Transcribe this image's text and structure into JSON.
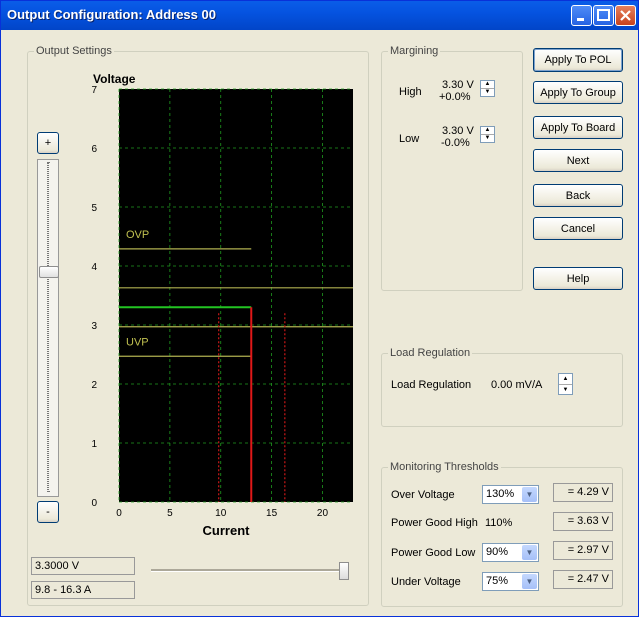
{
  "window": {
    "title": "Output Configuration: Address 00"
  },
  "output_settings": {
    "group_label": "Output Settings",
    "plus_label": "+",
    "minus_label": "-",
    "voltage_value": "3.3000 V",
    "current_range": "9.8 - 16.3 A"
  },
  "chart_data": {
    "type": "line",
    "ylabel": "Voltage",
    "xlabel": "Current",
    "xlim": [
      0,
      23
    ],
    "ylim": [
      0,
      7
    ],
    "x_ticks": [
      "0",
      "5",
      "10",
      "15",
      "20"
    ],
    "y_ticks": [
      "0",
      "1",
      "2",
      "3",
      "4",
      "5",
      "6",
      "7"
    ],
    "grid": true,
    "background": "#000000",
    "annotations": [
      {
        "text": "OVP",
        "y": 4.29
      },
      {
        "text": "UVP",
        "y": 2.47
      }
    ],
    "series": [
      {
        "role": "ovp-limit",
        "color": "#b0b050",
        "points": [
          [
            0,
            4.29
          ],
          [
            13,
            4.29
          ]
        ]
      },
      {
        "role": "uvp-limit",
        "color": "#b0b050",
        "points": [
          [
            0,
            2.47
          ],
          [
            13,
            2.47
          ]
        ]
      },
      {
        "role": "power-good-high",
        "color": "#b0b050",
        "points": [
          [
            0,
            3.63
          ],
          [
            23,
            3.63
          ]
        ]
      },
      {
        "role": "power-good-low",
        "color": "#b0b050",
        "points": [
          [
            0,
            2.97
          ],
          [
            23,
            2.97
          ]
        ]
      },
      {
        "role": "output-voltage",
        "color": "#22c422",
        "points": [
          [
            0,
            3.3
          ],
          [
            13,
            3.3
          ]
        ]
      },
      {
        "role": "current-limit",
        "color": "#e01818",
        "points": [
          [
            13,
            3.3
          ],
          [
            13,
            0
          ]
        ]
      },
      {
        "role": "current-min",
        "color": "#c81818",
        "dashed": true,
        "points": [
          [
            9.8,
            3.2
          ],
          [
            9.8,
            0
          ]
        ]
      },
      {
        "role": "current-max",
        "color": "#c81818",
        "dashed": true,
        "points": [
          [
            16.3,
            3.2
          ],
          [
            16.3,
            0
          ]
        ]
      }
    ]
  },
  "margining": {
    "group_label": "Margining",
    "high_label": "High",
    "high_voltage": "3.30 V",
    "high_percent": "+0.0%",
    "low_label": "Low",
    "low_voltage": "3.30 V",
    "low_percent": "-0.0%"
  },
  "buttons": {
    "apply_pol": "Apply To POL",
    "apply_group": "Apply To Group",
    "apply_board": "Apply To Board",
    "next": "Next",
    "back": "Back",
    "cancel": "Cancel",
    "help": "Help"
  },
  "load_regulation": {
    "group_label": "Load Regulation",
    "label": "Load Regulation",
    "value": "0.00 mV/A"
  },
  "monitoring": {
    "group_label": "Monitoring Thresholds",
    "over_voltage": {
      "label": "Over Voltage",
      "select": "130%",
      "value": "= 4.29 V"
    },
    "pg_high": {
      "label": "Power Good High",
      "text": "110%",
      "value": "= 3.63 V"
    },
    "pg_low": {
      "label": "Power Good Low",
      "select": "90%",
      "value": "= 2.97 V"
    },
    "under_voltage": {
      "label": "Under Voltage",
      "select": "75%",
      "value": "= 2.47 V"
    }
  }
}
